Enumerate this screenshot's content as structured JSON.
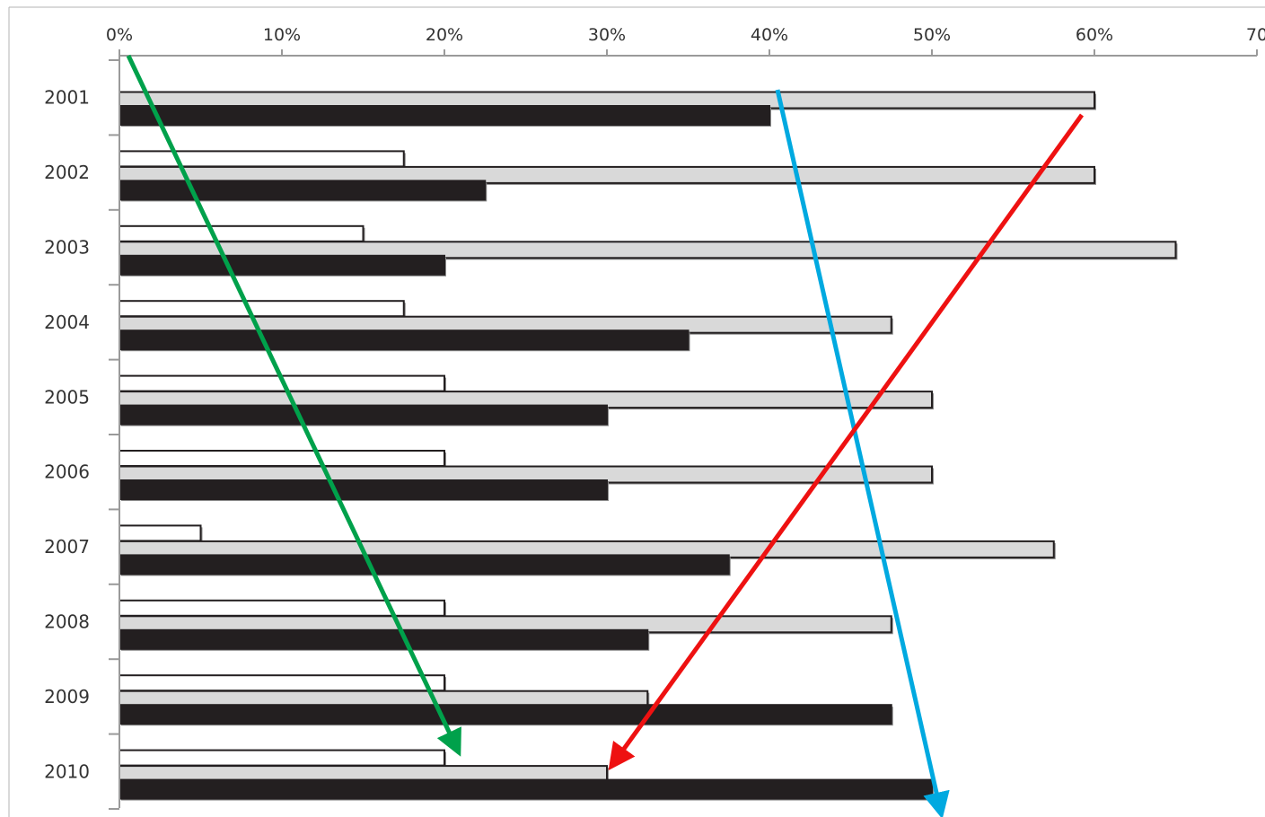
{
  "chart_data": {
    "type": "bar",
    "orientation": "horizontal",
    "categories": [
      "2001",
      "2002",
      "2003",
      "2004",
      "2005",
      "2006",
      "2007",
      "2008",
      "2009",
      "2010"
    ],
    "series": [
      {
        "color": "#ffffff",
        "values": [
          null,
          17.5,
          15,
          17.5,
          20,
          20,
          5,
          20,
          20,
          20
        ]
      },
      {
        "color": "#d9d9d9",
        "values": [
          60,
          60,
          65,
          47.5,
          50,
          50,
          57.5,
          47.5,
          32.5,
          30
        ]
      },
      {
        "color": "#231f20",
        "values": [
          40,
          22.5,
          20,
          35,
          30,
          30,
          37.5,
          32.5,
          47.5,
          50
        ]
      }
    ],
    "xlim": [
      0,
      70
    ],
    "x_ticks": [
      "0%",
      "10%",
      "20%",
      "30%",
      "40%",
      "50%",
      "60%",
      "70"
    ],
    "x_axis_position": "top",
    "grid": false,
    "legend": "none",
    "annotations": [
      {
        "type": "arrow",
        "color": "#00a14b",
        "description": "descending arrow"
      },
      {
        "type": "arrow",
        "color": "#00a9e0",
        "description": "descending arrow"
      },
      {
        "type": "arrow",
        "color": "#ee1111",
        "description": "descending arrow"
      }
    ]
  }
}
